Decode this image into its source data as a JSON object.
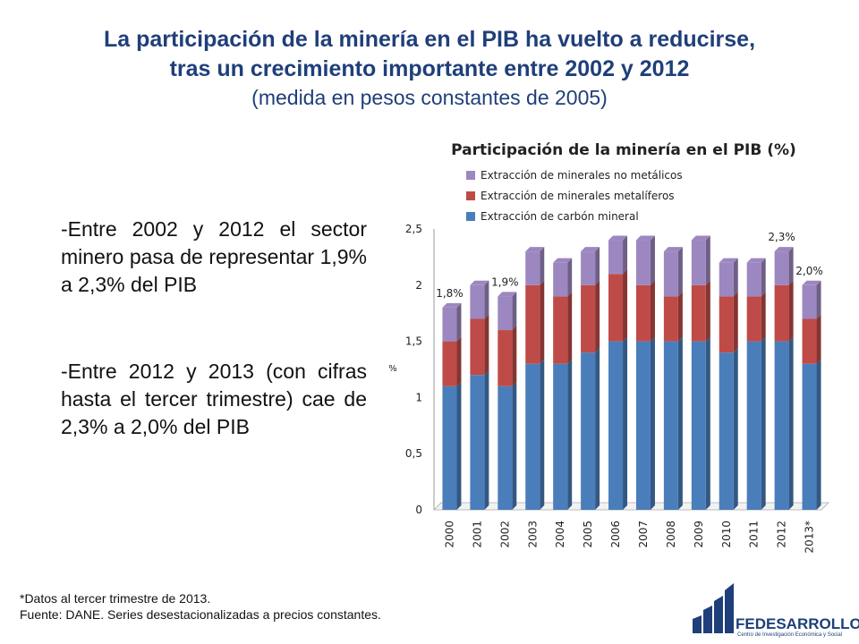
{
  "slide": {
    "title_line1": "La participación de la minería en el PIB ha vuelto a reducirse,",
    "title_line2": "tras un crecimiento importante entre 2002 y 2012",
    "subtitle": "(medida en pesos constantes de 2005)",
    "bullet1": "-Entre 2002 y 2012 el sector minero pasa de representar 1,9% a 2,3% del PIB",
    "bullet2": "-Entre 2012 y 2013 (con cifras hasta el tercer trimestre) cae de 2,3% a 2,0% del PIB",
    "footnote1": "*Datos al tercer trimestre de 2013.",
    "footnote2": "Fuente: DANE. Series desestacionalizadas a precios constantes.",
    "logo_name": "FEDESARROLLO",
    "logo_tagline": "Centro de Investigación Económica y Social"
  },
  "chart_data": {
    "type": "bar",
    "stacked": true,
    "title": "Participación de la minería en el PIB (%)",
    "ylabel": "%",
    "ylim": [
      0,
      2.5
    ],
    "yticks": [
      "0",
      "0,5",
      "1",
      "1,5",
      "2",
      "2,5"
    ],
    "categories": [
      "2000",
      "2001",
      "2002",
      "2003",
      "2004",
      "2005",
      "2006",
      "2007",
      "2008",
      "2009",
      "2010",
      "2011",
      "2012",
      "2013*"
    ],
    "series": [
      {
        "name": "Extracción de carbón mineral",
        "color": "#4a7ebb",
        "values": [
          1.1,
          1.2,
          1.1,
          1.3,
          1.3,
          1.4,
          1.5,
          1.5,
          1.5,
          1.5,
          1.4,
          1.5,
          1.5,
          1.3
        ]
      },
      {
        "name": "Extracción de minerales metalíferos",
        "color": "#be4b48",
        "values": [
          0.4,
          0.5,
          0.5,
          0.7,
          0.6,
          0.6,
          0.6,
          0.5,
          0.4,
          0.5,
          0.5,
          0.4,
          0.5,
          0.4
        ]
      },
      {
        "name": "Extracción de minerales no metálicos",
        "color": "#9d87c0",
        "values": [
          0.3,
          0.3,
          0.3,
          0.3,
          0.3,
          0.3,
          0.3,
          0.4,
          0.4,
          0.4,
          0.3,
          0.3,
          0.3,
          0.3
        ]
      }
    ],
    "data_labels": [
      {
        "category": "2000",
        "text": "1,8%"
      },
      {
        "category": "2002",
        "text": "1,9%"
      },
      {
        "category": "2012",
        "text": "2,3%"
      },
      {
        "category": "2013*",
        "text": "2,0%"
      }
    ],
    "legend_position": "top-left",
    "grid": false
  }
}
